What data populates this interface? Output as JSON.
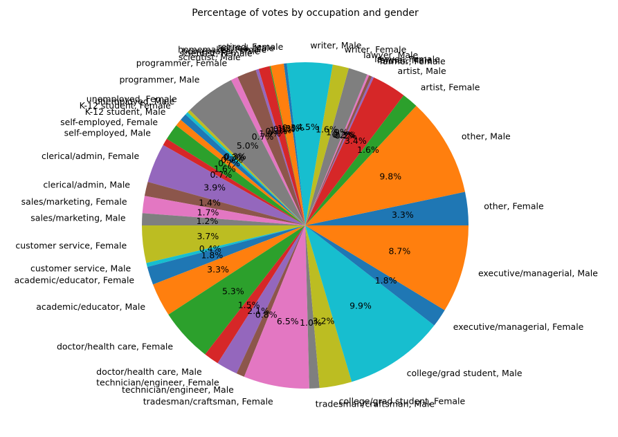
{
  "chart_data": {
    "type": "pie",
    "title": "Percentage of votes by occupation and gender",
    "start_angle_deg": 0,
    "direction": "counterclockwise",
    "palette": [
      "#1f77b4",
      "#ff7f0e",
      "#2ca02c",
      "#d62728",
      "#9467bd",
      "#8c564b",
      "#e377c2",
      "#7f7f7f",
      "#bcbd22",
      "#17becf"
    ],
    "slices": [
      {
        "label": "other, Female",
        "value": 3.3,
        "pct_label": "3.3%"
      },
      {
        "label": "other, Male",
        "value": 9.8,
        "pct_label": "9.8%"
      },
      {
        "label": "artist, Female",
        "value": 1.6,
        "pct_label": "1.6%"
      },
      {
        "label": "artist, Male",
        "value": 3.4,
        "pct_label": "3.4%"
      },
      {
        "label": "farmer, Female",
        "value": 0.2,
        "pct_label": "0.2%"
      },
      {
        "label": "farmer, Male",
        "value": 0.3,
        "pct_label": "0.3%"
      },
      {
        "label": "lawyer, Female",
        "value": 0.2,
        "pct_label": "0.2%"
      },
      {
        "label": "lawyer, Male",
        "value": 1.9,
        "pct_label": "1.9%"
      },
      {
        "label": "writer, Female",
        "value": 1.6,
        "pct_label": "1.6%"
      },
      {
        "label": "writer, Male",
        "value": 4.5,
        "pct_label": "4.5%"
      },
      {
        "label": "retired, Female",
        "value": 0.3,
        "pct_label": "0.3%"
      },
      {
        "label": "retired, Male",
        "value": 1.3,
        "pct_label": "1.3%"
      },
      {
        "label": "homemaker, Female",
        "value": 0.1,
        "pct_label": "0.1%"
      },
      {
        "label": "homemaker, Male",
        "value": 1.1,
        "pct_label": "1.1%"
      },
      {
        "label": "scientist, Female",
        "value": 0.3,
        "pct_label": "0.3%"
      },
      {
        "label": "scientist, Male",
        "value": 1.9,
        "pct_label": "1.9%"
      },
      {
        "label": "programmer, Female",
        "value": 0.7,
        "pct_label": "0.7%"
      },
      {
        "label": "programmer, Male",
        "value": 5.0,
        "pct_label": "5.0%"
      },
      {
        "label": "unemployed, Female",
        "value": 0.3,
        "pct_label": "0.3%"
      },
      {
        "label": "unemployed, Male",
        "value": 0.3,
        "pct_label": "0.3%"
      },
      {
        "label": "K-12 student, Female",
        "value": 0.7,
        "pct_label": "0.7%"
      },
      {
        "label": "K-12 student, Male",
        "value": 0.7,
        "pct_label": "0.7%"
      },
      {
        "label": "self-employed, Female",
        "value": 1.6,
        "pct_label": "1.6%"
      },
      {
        "label": "self-employed, Male",
        "value": 0.7,
        "pct_label": "0.7%"
      },
      {
        "label": "clerical/admin, Female",
        "value": 3.9,
        "pct_label": "3.9%"
      },
      {
        "label": "clerical/admin, Male",
        "value": 1.4,
        "pct_label": "1.4%"
      },
      {
        "label": "sales/marketing, Female",
        "value": 1.7,
        "pct_label": "1.7%"
      },
      {
        "label": "sales/marketing, Male",
        "value": 1.2,
        "pct_label": "1.2%"
      },
      {
        "label": "customer service, Female",
        "value": 3.7,
        "pct_label": "3.7%"
      },
      {
        "label": "customer service, Male",
        "value": 0.4,
        "pct_label": "0.4%"
      },
      {
        "label": "academic/educator, Female",
        "value": 1.8,
        "pct_label": "1.8%"
      },
      {
        "label": "academic/educator, Male",
        "value": 3.3,
        "pct_label": "3.3%"
      },
      {
        "label": "doctor/health care, Female",
        "value": 5.3,
        "pct_label": "5.3%"
      },
      {
        "label": "doctor/health care, Male",
        "value": 1.5,
        "pct_label": "1.5%"
      },
      {
        "label": "technician/engineer, Female",
        "value": 2.1,
        "pct_label": "2.1%"
      },
      {
        "label": "technician/engineer, Male",
        "value": 0.8,
        "pct_label": "0.8%"
      },
      {
        "label": "tradesman/craftsman, Female",
        "value": 6.5,
        "pct_label": "6.5%"
      },
      {
        "label": "tradesman/craftsman, Male",
        "value": 1.0,
        "pct_label": "1.0%"
      },
      {
        "label": "college/grad student, Female",
        "value": 3.2,
        "pct_label": "3.2%"
      },
      {
        "label": "college/grad student, Male",
        "value": 9.9,
        "pct_label": "9.9%"
      },
      {
        "label": "executive/managerial, Female",
        "value": 1.8,
        "pct_label": "1.8%"
      },
      {
        "label": "executive/managerial, Male",
        "value": 8.7,
        "pct_label": "8.7%"
      }
    ]
  }
}
